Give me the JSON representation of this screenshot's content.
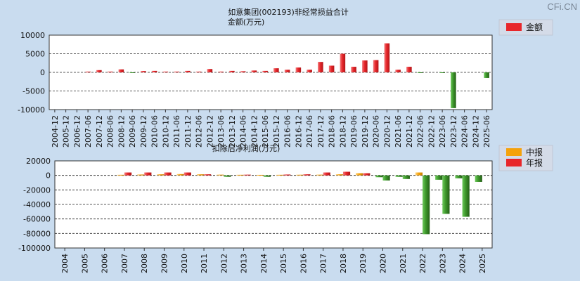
{
  "watermark": "CFi.CN",
  "colors": {
    "background": "#c9dcef",
    "plot_background": "#ffffff",
    "bar_red": "#e8262a",
    "bar_red_light": "#f07a7c",
    "bar_green": "#2f7d1f",
    "bar_green_light": "#6cc95a",
    "bar_orange": "#f5a20a",
    "bar_orange_light": "#ffd27a",
    "legend_bg": "#d4dbe8"
  },
  "chart_data": [
    {
      "type": "bar",
      "title": "如意集团(002193)非经常损益合计",
      "subtitle": "金额(万元)",
      "ylim": [
        -10000,
        10000
      ],
      "yticks": [
        10000,
        5000,
        0,
        -5000,
        -10000
      ],
      "grid": true,
      "legend": {
        "position": "top-right",
        "entries": [
          {
            "name": "金额",
            "color": "#e8262a"
          }
        ]
      },
      "categories": [
        "2004-12",
        "2005-12",
        "2006-12",
        "2007-06",
        "2007-12",
        "2008-06",
        "2008-12",
        "2009-06",
        "2009-12",
        "2010-06",
        "2010-12",
        "2011-06",
        "2011-12",
        "2012-06",
        "2012-12",
        "2013-06",
        "2013-12",
        "2014-06",
        "2014-12",
        "2015-06",
        "2015-12",
        "2016-06",
        "2016-12",
        "2017-06",
        "2017-12",
        "2018-06",
        "2018-12",
        "2019-06",
        "2019-12",
        "2020-06",
        "2020-12",
        "2021-06",
        "2021-12",
        "2022-06",
        "2022-12",
        "2023-06",
        "2023-12",
        "2024-06",
        "2024-12",
        "2025-06"
      ],
      "series": [
        {
          "name": "金额",
          "values": [
            0,
            0,
            0,
            200,
            600,
            200,
            800,
            -100,
            350,
            400,
            200,
            200,
            400,
            200,
            900,
            200,
            400,
            300,
            500,
            400,
            1100,
            700,
            1300,
            700,
            2800,
            1800,
            5000,
            1500,
            3200,
            3300,
            7800,
            700,
            1500,
            -100,
            0,
            -100,
            -9600,
            0,
            0,
            -1500
          ]
        }
      ]
    },
    {
      "type": "bar",
      "title": "扣除后净利润(万元)",
      "ylim": [
        -100000,
        20000
      ],
      "yticks": [
        20000,
        0,
        -20000,
        -40000,
        -60000,
        -80000,
        -100000
      ],
      "grid": true,
      "legend": {
        "position": "top-right",
        "entries": [
          {
            "name": "中报",
            "color": "#f5a20a"
          },
          {
            "name": "年报",
            "color": "#e8262a"
          }
        ]
      },
      "categories": [
        "2004",
        "2005",
        "2006",
        "2007",
        "2008",
        "2009",
        "2010",
        "2011",
        "2012",
        "2013",
        "2014",
        "2015",
        "2016",
        "2017",
        "2018",
        "2019",
        "2020",
        "2021",
        "2022",
        "2023",
        "2024",
        "2025"
      ],
      "series": [
        {
          "name": "中报",
          "values": [
            null,
            null,
            null,
            800,
            1200,
            1500,
            1800,
            1500,
            1000,
            800,
            700,
            800,
            900,
            1000,
            1500,
            3000,
            -2500,
            -2000,
            4000,
            -6000,
            -4000,
            -9000
          ]
        },
        {
          "name": "年报",
          "values": [
            null,
            null,
            null,
            4000,
            4000,
            4000,
            4000,
            1500,
            -2000,
            1000,
            -2000,
            1200,
            1500,
            4000,
            5000,
            3000,
            -7000,
            -5000,
            -81000,
            -53000,
            -57000,
            null
          ]
        }
      ]
    }
  ]
}
